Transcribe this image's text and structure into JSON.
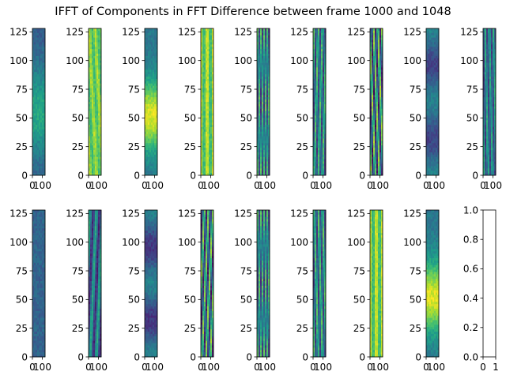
{
  "title": "IFFT of Components in FFT Difference between frame 1000 and 1048",
  "colors": {
    "viridis": [
      "#440154",
      "#482878",
      "#3e4a89",
      "#31688e",
      "#26828e",
      "#1f9e89",
      "#35b779",
      "#6ece58",
      "#b5de2b",
      "#fde725"
    ]
  },
  "chart_data": {
    "type": "heatmap",
    "layout": {
      "rows": 2,
      "cols": 9
    },
    "grid": false,
    "panels": [
      {
        "kind": "image",
        "pattern": "blob",
        "base": 0.28,
        "amp": 0.32,
        "center": 55,
        "width": 40,
        "xlim": [
          0,
          128
        ],
        "ylim": [
          0,
          128
        ],
        "xticks": [
          0,
          100
        ],
        "yticks": [
          0,
          25,
          50,
          75,
          100,
          125
        ]
      },
      {
        "kind": "image",
        "pattern": "diag",
        "base": 0.78,
        "amp": 0.1,
        "slope": 0.6,
        "freq": 1.0,
        "xlim": [
          0,
          128
        ],
        "ylim": [
          0,
          128
        ],
        "xticks": [
          0,
          100
        ],
        "yticks": [
          0,
          25,
          50,
          75,
          100,
          125
        ]
      },
      {
        "kind": "image",
        "pattern": "blob",
        "base": 0.4,
        "amp": 0.55,
        "center": 52,
        "width": 30,
        "xlim": [
          0,
          128
        ],
        "ylim": [
          0,
          128
        ],
        "xticks": [
          0,
          100
        ],
        "yticks": [
          0,
          25,
          50,
          75,
          100,
          125
        ]
      },
      {
        "kind": "image",
        "pattern": "vstripe",
        "base": 0.8,
        "amp": 0.15,
        "freq": 2.0,
        "xlim": [
          0,
          128
        ],
        "ylim": [
          0,
          128
        ],
        "xticks": [
          0,
          100
        ],
        "yticks": [
          0,
          25,
          50,
          75,
          100,
          125
        ]
      },
      {
        "kind": "image",
        "pattern": "diag",
        "base": 0.45,
        "amp": 0.28,
        "slope": 0.5,
        "freq": 2.0,
        "xlim": [
          0,
          128
        ],
        "ylim": [
          0,
          128
        ],
        "xticks": [
          0,
          100
        ],
        "yticks": [
          0,
          25,
          50,
          75,
          100,
          125
        ]
      },
      {
        "kind": "image",
        "pattern": "diag",
        "base": 0.45,
        "amp": 0.28,
        "slope": 0.5,
        "freq": 2.5,
        "xlim": [
          0,
          128
        ],
        "ylim": [
          0,
          128
        ],
        "xticks": [
          0,
          100
        ],
        "yticks": [
          0,
          25,
          50,
          75,
          100,
          125
        ]
      },
      {
        "kind": "image",
        "pattern": "diag",
        "base": 0.45,
        "amp": 0.4,
        "slope": 0.7,
        "freq": 1.5,
        "xlim": [
          0,
          128
        ],
        "ylim": [
          0,
          128
        ],
        "xticks": [
          0,
          100
        ],
        "yticks": [
          0,
          25,
          50,
          75,
          100,
          125
        ]
      },
      {
        "kind": "image",
        "pattern": "bands",
        "base": 0.32,
        "amp": 0.12,
        "freq": 2.0,
        "xlim": [
          0,
          128
        ],
        "ylim": [
          0,
          128
        ],
        "xticks": [
          0,
          100
        ],
        "yticks": [
          0,
          25,
          50,
          75,
          100,
          125
        ]
      },
      {
        "kind": "image",
        "pattern": "diag",
        "base": 0.4,
        "amp": 0.22,
        "slope": 0.4,
        "freq": 1.5,
        "xlim": [
          0,
          128
        ],
        "ylim": [
          0,
          128
        ],
        "xticks": [
          0,
          100
        ],
        "yticks": [
          0,
          25,
          50,
          75,
          100,
          125
        ]
      },
      {
        "kind": "image",
        "pattern": "flat",
        "base": 0.32,
        "amp": 0.04,
        "xlim": [
          0,
          128
        ],
        "ylim": [
          0,
          128
        ],
        "xticks": [
          0,
          100
        ],
        "yticks": [
          0,
          25,
          50,
          75,
          100,
          125
        ]
      },
      {
        "kind": "image",
        "pattern": "diag",
        "base": 0.35,
        "amp": 0.25,
        "slope": -0.5,
        "freq": 1.0,
        "xlim": [
          0,
          128
        ],
        "ylim": [
          0,
          128
        ],
        "xticks": [
          0,
          100
        ],
        "yticks": [
          0,
          25,
          50,
          75,
          100,
          125
        ]
      },
      {
        "kind": "image",
        "pattern": "bands",
        "base": 0.3,
        "amp": 0.14,
        "freq": 2.0,
        "xlim": [
          0,
          128
        ],
        "ylim": [
          0,
          128
        ],
        "xticks": [
          0,
          100
        ],
        "yticks": [
          0,
          25,
          50,
          75,
          100,
          125
        ]
      },
      {
        "kind": "image",
        "pattern": "diag",
        "base": 0.45,
        "amp": 0.38,
        "slope": -0.8,
        "freq": 1.5,
        "xlim": [
          0,
          128
        ],
        "ylim": [
          0,
          128
        ],
        "xticks": [
          0,
          100
        ],
        "yticks": [
          0,
          25,
          50,
          75,
          100,
          125
        ]
      },
      {
        "kind": "image",
        "pattern": "diag",
        "base": 0.45,
        "amp": 0.28,
        "slope": -0.5,
        "freq": 2.0,
        "xlim": [
          0,
          128
        ],
        "ylim": [
          0,
          128
        ],
        "xticks": [
          0,
          100
        ],
        "yticks": [
          0,
          25,
          50,
          75,
          100,
          125
        ]
      },
      {
        "kind": "image",
        "pattern": "diag",
        "base": 0.45,
        "amp": 0.28,
        "slope": -0.5,
        "freq": 2.5,
        "xlim": [
          0,
          128
        ],
        "ylim": [
          0,
          128
        ],
        "xticks": [
          0,
          100
        ],
        "yticks": [
          0,
          25,
          50,
          75,
          100,
          125
        ]
      },
      {
        "kind": "image",
        "pattern": "vstripe",
        "base": 0.8,
        "amp": 0.15,
        "freq": 2.0,
        "xlim": [
          0,
          128
        ],
        "ylim": [
          0,
          128
        ],
        "xticks": [
          0,
          100
        ],
        "yticks": [
          0,
          25,
          50,
          75,
          100,
          125
        ]
      },
      {
        "kind": "image",
        "pattern": "blob",
        "base": 0.4,
        "amp": 0.55,
        "center": 52,
        "width": 30,
        "xlim": [
          0,
          128
        ],
        "ylim": [
          0,
          128
        ],
        "xticks": [
          0,
          100
        ],
        "yticks": [
          0,
          25,
          50,
          75,
          100,
          125
        ]
      },
      {
        "kind": "empty",
        "xlim": [
          0,
          1
        ],
        "ylim": [
          0,
          1
        ],
        "xticks": [
          0,
          1
        ],
        "yticks": [
          0.0,
          0.2,
          0.4,
          0.6,
          0.8,
          1.0
        ]
      }
    ]
  }
}
